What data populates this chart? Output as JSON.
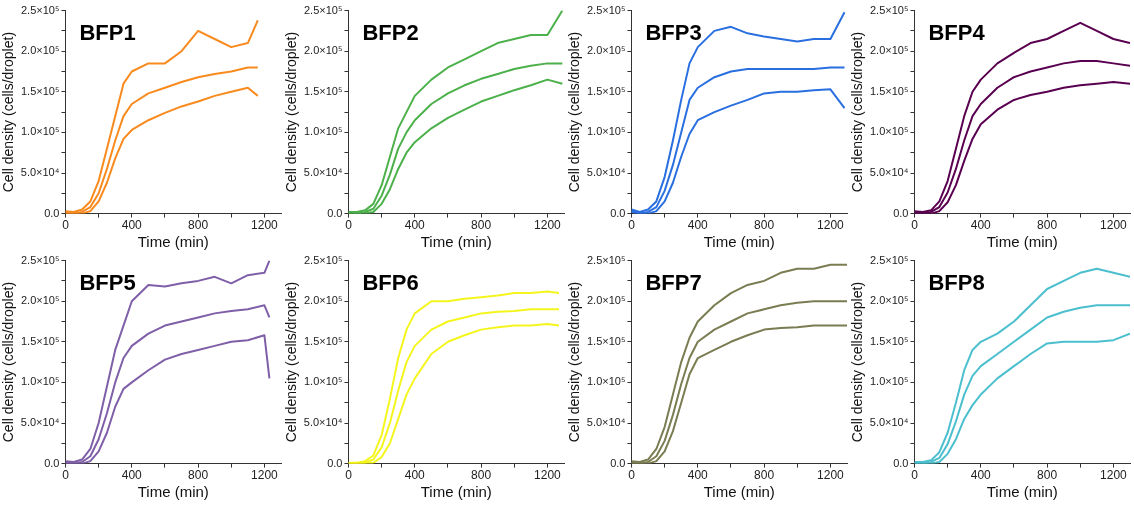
{
  "chart_data": [
    {
      "type": "line",
      "title": "BFP1",
      "xlabel": "Time (min)",
      "ylabel": "Cell density (cells/droplet)",
      "xlim": [
        0,
        1300
      ],
      "ylim": [
        0,
        250000
      ],
      "xticks": [
        0,
        {
          "value": 200,
          "label": null
        },
        400,
        {
          "value": 600,
          "label": null
        },
        800,
        {
          "value": 1000,
          "label": null
        },
        1200
      ],
      "yticks": [
        {
          "value": 0,
          "label": "0.0"
        },
        {
          "value": 25000,
          "label": null
        },
        {
          "value": 50000,
          "label": "5.0×10⁴"
        },
        {
          "value": 75000,
          "label": null
        },
        {
          "value": 100000,
          "label": "1.0×10⁵"
        },
        {
          "value": 125000,
          "label": null
        },
        {
          "value": 150000,
          "label": "1.5×10⁵"
        },
        {
          "value": 175000,
          "label": null
        },
        {
          "value": 200000,
          "label": "2.0×10⁵"
        },
        {
          "value": 225000,
          "label": null
        },
        {
          "value": 250000,
          "label": "2.5×10⁵"
        }
      ],
      "series": [
        {
          "color": "#f98a1e",
          "x": [
            0,
            50,
            100,
            150,
            200,
            250,
            300,
            350,
            400,
            500,
            600,
            700,
            800,
            900,
            1000,
            1100,
            1160
          ],
          "values": [
            0,
            0,
            0,
            3000,
            15000,
            38000,
            68000,
            92000,
            103000,
            115000,
            124000,
            132000,
            138000,
            145000,
            150000,
            155000,
            145000
          ]
        },
        {
          "color": "#f98a1e",
          "x": [
            0,
            50,
            100,
            150,
            200,
            250,
            300,
            350,
            400,
            500,
            600,
            700,
            800,
            900,
            1000,
            1100,
            1160
          ],
          "values": [
            1000,
            0,
            2000,
            8000,
            25000,
            55000,
            90000,
            120000,
            135000,
            148000,
            155000,
            162000,
            168000,
            172000,
            175000,
            180000,
            180000
          ]
        },
        {
          "color": "#f98a1e",
          "x": [
            0,
            50,
            100,
            150,
            200,
            250,
            300,
            350,
            400,
            500,
            600,
            700,
            800,
            900,
            1000,
            1100,
            1160
          ],
          "values": [
            3000,
            2000,
            5000,
            15000,
            40000,
            80000,
            120000,
            160000,
            175000,
            185000,
            185000,
            200000,
            225000,
            215000,
            205000,
            210000,
            238000
          ]
        }
      ]
    },
    {
      "type": "line",
      "title": "BFP2",
      "xlabel": "Time (min)",
      "ylabel": "Cell density (cells/droplet)",
      "xlim": [
        0,
        1300
      ],
      "ylim": [
        0,
        250000
      ],
      "xticks": [
        0,
        {
          "value": 200,
          "label": null
        },
        400,
        {
          "value": 600,
          "label": null
        },
        800,
        {
          "value": 1000,
          "label": null
        },
        1200
      ],
      "yticks": [
        {
          "value": 0,
          "label": "0.0"
        },
        {
          "value": 25000,
          "label": null
        },
        {
          "value": 50000,
          "label": "5.0×10⁴"
        },
        {
          "value": 75000,
          "label": null
        },
        {
          "value": 100000,
          "label": "1.0×10⁵"
        },
        {
          "value": 125000,
          "label": null
        },
        {
          "value": 150000,
          "label": "1.5×10⁵"
        },
        {
          "value": 175000,
          "label": null
        },
        {
          "value": 200000,
          "label": "2.0×10⁵"
        },
        {
          "value": 225000,
          "label": null
        },
        {
          "value": 250000,
          "label": "2.5×10⁵"
        }
      ],
      "series": [
        {
          "color": "#4cb04b",
          "x": [
            0,
            50,
            100,
            150,
            200,
            250,
            300,
            350,
            400,
            500,
            600,
            700,
            800,
            900,
            1000,
            1100,
            1200,
            1290
          ],
          "values": [
            0,
            0,
            0,
            2000,
            12000,
            30000,
            55000,
            75000,
            88000,
            105000,
            118000,
            128000,
            138000,
            145000,
            152000,
            158000,
            165000,
            160000
          ]
        },
        {
          "color": "#4cb04b",
          "x": [
            0,
            50,
            100,
            150,
            200,
            250,
            300,
            350,
            400,
            500,
            600,
            700,
            800,
            900,
            1000,
            1100,
            1200,
            1290
          ],
          "values": [
            1000,
            0,
            2000,
            6000,
            22000,
            48000,
            80000,
            100000,
            115000,
            135000,
            148000,
            158000,
            166000,
            172000,
            178000,
            182000,
            185000,
            185000
          ]
        },
        {
          "color": "#4cb04b",
          "x": [
            0,
            50,
            100,
            150,
            200,
            250,
            300,
            350,
            400,
            500,
            600,
            700,
            800,
            900,
            1000,
            1100,
            1200,
            1290
          ],
          "values": [
            2000,
            2000,
            4000,
            12000,
            35000,
            70000,
            105000,
            125000,
            145000,
            165000,
            180000,
            190000,
            200000,
            210000,
            215000,
            220000,
            220000,
            250000
          ]
        }
      ]
    },
    {
      "type": "line",
      "title": "BFP3",
      "xlabel": "Time (min)",
      "ylabel": "Cell density (cells/droplet)",
      "xlim": [
        0,
        1300
      ],
      "ylim": [
        0,
        250000
      ],
      "xticks": [
        0,
        {
          "value": 200,
          "label": null
        },
        400,
        {
          "value": 600,
          "label": null
        },
        800,
        {
          "value": 1000,
          "label": null
        },
        1200
      ],
      "yticks": [
        {
          "value": 0,
          "label": "0.0"
        },
        {
          "value": 25000,
          "label": null
        },
        {
          "value": 50000,
          "label": "5.0×10⁴"
        },
        {
          "value": 75000,
          "label": null
        },
        {
          "value": 100000,
          "label": "1.0×10⁵"
        },
        {
          "value": 125000,
          "label": null
        },
        {
          "value": 150000,
          "label": "1.5×10⁵"
        },
        {
          "value": 175000,
          "label": null
        },
        {
          "value": 200000,
          "label": "2.0×10⁵"
        },
        {
          "value": 225000,
          "label": null
        },
        {
          "value": 250000,
          "label": "2.5×10⁵"
        }
      ],
      "series": [
        {
          "color": "#2a6fe0",
          "x": [
            0,
            50,
            100,
            150,
            200,
            250,
            300,
            350,
            400,
            500,
            600,
            700,
            800,
            900,
            1000,
            1100,
            1200,
            1285
          ],
          "values": [
            3000,
            0,
            0,
            3000,
            15000,
            38000,
            70000,
            98000,
            115000,
            125000,
            133000,
            140000,
            148000,
            150000,
            150000,
            152000,
            153000,
            130000
          ]
        },
        {
          "color": "#2a6fe0",
          "x": [
            0,
            50,
            100,
            150,
            200,
            250,
            300,
            350,
            400,
            500,
            600,
            700,
            800,
            900,
            1000,
            1100,
            1200,
            1285
          ],
          "values": [
            2000,
            0,
            2000,
            8000,
            28000,
            60000,
            100000,
            140000,
            155000,
            168000,
            175000,
            178000,
            178000,
            178000,
            178000,
            178000,
            180000,
            180000
          ]
        },
        {
          "color": "#2a6fe0",
          "x": [
            0,
            50,
            100,
            150,
            200,
            250,
            300,
            350,
            400,
            500,
            600,
            700,
            800,
            900,
            1000,
            1100,
            1200,
            1285
          ],
          "values": [
            5000,
            2000,
            5000,
            15000,
            45000,
            90000,
            140000,
            185000,
            205000,
            225000,
            230000,
            222000,
            218000,
            215000,
            212000,
            215000,
            215000,
            248000
          ]
        }
      ]
    },
    {
      "type": "line",
      "title": "BFP4",
      "xlabel": "Time (min)",
      "ylabel": "Cell density (cells/droplet)",
      "xlim": [
        0,
        1300
      ],
      "ylim": [
        0,
        250000
      ],
      "xticks": [
        0,
        {
          "value": 200,
          "label": null
        },
        400,
        {
          "value": 600,
          "label": null
        },
        800,
        {
          "value": 1000,
          "label": null
        },
        1200
      ],
      "yticks": [
        {
          "value": 0,
          "label": "0.0"
        },
        {
          "value": 25000,
          "label": null
        },
        {
          "value": 50000,
          "label": "5.0×10⁴"
        },
        {
          "value": 75000,
          "label": null
        },
        {
          "value": 100000,
          "label": "1.0×10⁵"
        },
        {
          "value": 125000,
          "label": null
        },
        {
          "value": 150000,
          "label": "1.5×10⁵"
        },
        {
          "value": 175000,
          "label": null
        },
        {
          "value": 200000,
          "label": "2.0×10⁵"
        },
        {
          "value": 225000,
          "label": null
        },
        {
          "value": 250000,
          "label": "2.5×10⁵"
        }
      ],
      "series": [
        {
          "color": "#5a0050",
          "x": [
            0,
            50,
            100,
            150,
            200,
            250,
            300,
            350,
            400,
            500,
            600,
            700,
            800,
            900,
            1000,
            1100,
            1200,
            1300
          ],
          "values": [
            0,
            0,
            0,
            3000,
            14000,
            35000,
            65000,
            92000,
            110000,
            128000,
            140000,
            146000,
            150000,
            155000,
            158000,
            160000,
            162000,
            160000
          ]
        },
        {
          "color": "#5a0050",
          "x": [
            0,
            50,
            100,
            150,
            200,
            250,
            300,
            350,
            400,
            500,
            600,
            700,
            800,
            900,
            1000,
            1100,
            1200,
            1300
          ],
          "values": [
            1000,
            0,
            2000,
            8000,
            26000,
            55000,
            90000,
            120000,
            135000,
            155000,
            168000,
            175000,
            180000,
            185000,
            188000,
            188000,
            185000,
            182000
          ]
        },
        {
          "color": "#5a0050",
          "x": [
            0,
            50,
            100,
            150,
            200,
            250,
            300,
            350,
            400,
            500,
            600,
            700,
            800,
            900,
            1000,
            1100,
            1200,
            1300
          ],
          "values": [
            3000,
            2000,
            4000,
            15000,
            40000,
            80000,
            120000,
            150000,
            165000,
            185000,
            198000,
            210000,
            215000,
            225000,
            235000,
            225000,
            215000,
            210000
          ]
        }
      ]
    },
    {
      "type": "line",
      "title": "BFP5",
      "xlabel": "Time (min)",
      "ylabel": "Cell density (cells/droplet)",
      "xlim": [
        0,
        1300
      ],
      "ylim": [
        0,
        250000
      ],
      "xticks": [
        0,
        {
          "value": 200,
          "label": null
        },
        400,
        {
          "value": 600,
          "label": null
        },
        800,
        {
          "value": 1000,
          "label": null
        },
        1200
      ],
      "yticks": [
        {
          "value": 0,
          "label": "0.0"
        },
        {
          "value": 25000,
          "label": null
        },
        {
          "value": 50000,
          "label": "5.0×10⁴"
        },
        {
          "value": 75000,
          "label": null
        },
        {
          "value": 100000,
          "label": "1.0×10⁵"
        },
        {
          "value": 125000,
          "label": null
        },
        {
          "value": 150000,
          "label": "1.5×10⁵"
        },
        {
          "value": 175000,
          "label": null
        },
        {
          "value": 200000,
          "label": "2.0×10⁵"
        },
        {
          "value": 225000,
          "label": null
        },
        {
          "value": 250000,
          "label": "2.5×10⁵"
        }
      ],
      "series": [
        {
          "color": "#7f5fa8",
          "x": [
            0,
            50,
            100,
            150,
            200,
            250,
            300,
            350,
            400,
            500,
            600,
            700,
            800,
            900,
            1000,
            1100,
            1200,
            1230
          ],
          "values": [
            0,
            0,
            0,
            3000,
            15000,
            38000,
            70000,
            92000,
            100000,
            115000,
            128000,
            135000,
            140000,
            145000,
            150000,
            152000,
            158000,
            105000
          ]
        },
        {
          "color": "#7f5fa8",
          "x": [
            0,
            50,
            100,
            150,
            200,
            250,
            300,
            350,
            400,
            500,
            600,
            700,
            800,
            900,
            1000,
            1100,
            1200,
            1230
          ],
          "values": [
            1000,
            0,
            2000,
            9000,
            30000,
            62000,
            100000,
            130000,
            145000,
            160000,
            170000,
            175000,
            180000,
            185000,
            188000,
            190000,
            195000,
            180000
          ]
        },
        {
          "color": "#7f5fa8",
          "x": [
            0,
            50,
            100,
            150,
            200,
            250,
            300,
            350,
            400,
            500,
            600,
            700,
            800,
            900,
            1000,
            1100,
            1200,
            1230
          ],
          "values": [
            3000,
            2000,
            5000,
            18000,
            50000,
            95000,
            140000,
            170000,
            200000,
            220000,
            218000,
            222000,
            225000,
            230000,
            222000,
            232000,
            235000,
            250000
          ]
        }
      ]
    },
    {
      "type": "line",
      "title": "BFP6",
      "xlabel": "Time (min)",
      "ylabel": "Cell density (cells/droplet)",
      "xlim": [
        0,
        1300
      ],
      "ylim": [
        0,
        250000
      ],
      "xticks": [
        0,
        {
          "value": 200,
          "label": null
        },
        400,
        {
          "value": 600,
          "label": null
        },
        800,
        {
          "value": 1000,
          "label": null
        },
        1200
      ],
      "yticks": [
        {
          "value": 0,
          "label": "0.0"
        },
        {
          "value": 25000,
          "label": null
        },
        {
          "value": 50000,
          "label": "5.0×10⁴"
        },
        {
          "value": 75000,
          "label": null
        },
        {
          "value": 100000,
          "label": "1.0×10⁵"
        },
        {
          "value": 125000,
          "label": null
        },
        {
          "value": 150000,
          "label": "1.5×10⁵"
        },
        {
          "value": 175000,
          "label": null
        },
        {
          "value": 200000,
          "label": "2.0×10⁵"
        },
        {
          "value": 225000,
          "label": null
        },
        {
          "value": 250000,
          "label": "2.5×10⁵"
        }
      ],
      "series": [
        {
          "color": "#f5f51e",
          "x": [
            0,
            50,
            100,
            150,
            200,
            250,
            300,
            350,
            400,
            500,
            600,
            700,
            800,
            900,
            1000,
            1100,
            1200,
            1270
          ],
          "values": [
            0,
            0,
            0,
            1000,
            8000,
            25000,
            55000,
            85000,
            105000,
            135000,
            150000,
            158000,
            165000,
            168000,
            170000,
            170000,
            172000,
            170000
          ]
        },
        {
          "color": "#f5f51e",
          "x": [
            0,
            50,
            100,
            150,
            200,
            250,
            300,
            350,
            400,
            500,
            600,
            700,
            800,
            900,
            1000,
            1100,
            1200,
            1270
          ],
          "values": [
            0,
            0,
            1000,
            5000,
            20000,
            50000,
            90000,
            125000,
            145000,
            165000,
            175000,
            180000,
            185000,
            187000,
            188000,
            190000,
            190000,
            190000
          ]
        },
        {
          "color": "#f5f51e",
          "x": [
            0,
            50,
            100,
            150,
            200,
            250,
            300,
            350,
            400,
            500,
            600,
            700,
            800,
            900,
            1000,
            1100,
            1200,
            1270
          ],
          "values": [
            1000,
            1000,
            3000,
            10000,
            35000,
            80000,
            130000,
            165000,
            185000,
            200000,
            200000,
            203000,
            205000,
            207000,
            210000,
            210000,
            212000,
            210000
          ]
        }
      ]
    },
    {
      "type": "line",
      "title": "BFP7",
      "xlabel": "Time (min)",
      "ylabel": "Cell density (cells/droplet)",
      "xlim": [
        0,
        1300
      ],
      "ylim": [
        0,
        250000
      ],
      "xticks": [
        0,
        {
          "value": 200,
          "label": null
        },
        400,
        {
          "value": 600,
          "label": null
        },
        800,
        {
          "value": 1000,
          "label": null
        },
        1200
      ],
      "yticks": [
        {
          "value": 0,
          "label": "0.0"
        },
        {
          "value": 25000,
          "label": null
        },
        {
          "value": 50000,
          "label": "5.0×10⁴"
        },
        {
          "value": 75000,
          "label": null
        },
        {
          "value": 100000,
          "label": "1.0×10⁵"
        },
        {
          "value": 125000,
          "label": null
        },
        {
          "value": 150000,
          "label": "1.5×10⁵"
        },
        {
          "value": 175000,
          "label": null
        },
        {
          "value": 200000,
          "label": "2.0×10⁵"
        },
        {
          "value": 225000,
          "label": null
        },
        {
          "value": 250000,
          "label": "2.5×10⁵"
        }
      ],
      "series": [
        {
          "color": "#7a7c52",
          "x": [
            0,
            50,
            100,
            150,
            200,
            250,
            300,
            350,
            400,
            500,
            600,
            700,
            800,
            900,
            1000,
            1100,
            1200,
            1300
          ],
          "values": [
            0,
            0,
            0,
            3000,
            15000,
            40000,
            75000,
            110000,
            130000,
            140000,
            150000,
            158000,
            165000,
            167000,
            168000,
            170000,
            170000,
            170000
          ]
        },
        {
          "color": "#7a7c52",
          "x": [
            0,
            50,
            100,
            150,
            200,
            250,
            300,
            350,
            400,
            500,
            600,
            700,
            800,
            900,
            1000,
            1100,
            1200,
            1300
          ],
          "values": [
            1000,
            0,
            2000,
            9000,
            28000,
            60000,
            98000,
            130000,
            150000,
            165000,
            175000,
            185000,
            190000,
            195000,
            198000,
            200000,
            200000,
            200000
          ]
        },
        {
          "color": "#7a7c52",
          "x": [
            0,
            50,
            100,
            150,
            200,
            250,
            300,
            350,
            400,
            500,
            600,
            700,
            800,
            900,
            1000,
            1100,
            1200,
            1300
          ],
          "values": [
            3000,
            2000,
            5000,
            18000,
            45000,
            85000,
            125000,
            155000,
            175000,
            195000,
            210000,
            220000,
            225000,
            235000,
            240000,
            240000,
            245000,
            245000
          ]
        }
      ]
    },
    {
      "type": "line",
      "title": "BFP8",
      "xlabel": "Time (min)",
      "ylabel": "Cell density (cells/droplet)",
      "xlim": [
        0,
        1300
      ],
      "ylim": [
        0,
        250000
      ],
      "xticks": [
        0,
        {
          "value": 200,
          "label": null
        },
        400,
        {
          "value": 600,
          "label": null
        },
        800,
        {
          "value": 1000,
          "label": null
        },
        1200
      ],
      "yticks": [
        {
          "value": 0,
          "label": "0.0"
        },
        {
          "value": 25000,
          "label": null
        },
        {
          "value": 50000,
          "label": "5.0×10⁴"
        },
        {
          "value": 75000,
          "label": null
        },
        {
          "value": 100000,
          "label": "1.0×10⁵"
        },
        {
          "value": 125000,
          "label": null
        },
        {
          "value": 150000,
          "label": "1.5×10⁵"
        },
        {
          "value": 175000,
          "label": null
        },
        {
          "value": 200000,
          "label": "2.0×10⁵"
        },
        {
          "value": 225000,
          "label": null
        },
        {
          "value": 250000,
          "label": "2.5×10⁵"
        }
      ],
      "series": [
        {
          "color": "#4bbfce",
          "x": [
            0,
            50,
            100,
            150,
            200,
            250,
            300,
            350,
            400,
            500,
            600,
            700,
            800,
            900,
            1000,
            1100,
            1200,
            1300
          ],
          "values": [
            0,
            0,
            0,
            2000,
            12000,
            30000,
            55000,
            72000,
            85000,
            105000,
            120000,
            135000,
            148000,
            150000,
            150000,
            150000,
            152000,
            160000
          ]
        },
        {
          "color": "#4bbfce",
          "x": [
            0,
            50,
            100,
            150,
            200,
            250,
            300,
            350,
            400,
            500,
            600,
            700,
            800,
            900,
            1000,
            1100,
            1200,
            1300
          ],
          "values": [
            1000,
            0,
            2000,
            7000,
            24000,
            52000,
            85000,
            108000,
            120000,
            135000,
            150000,
            165000,
            180000,
            187000,
            192000,
            195000,
            195000,
            195000
          ]
        },
        {
          "color": "#4bbfce",
          "x": [
            0,
            50,
            100,
            150,
            200,
            250,
            300,
            350,
            400,
            500,
            600,
            700,
            800,
            900,
            1000,
            1100,
            1200,
            1300
          ],
          "values": [
            2000,
            2000,
            4000,
            14000,
            38000,
            75000,
            115000,
            140000,
            150000,
            160000,
            175000,
            195000,
            215000,
            225000,
            235000,
            240000,
            235000,
            230000
          ]
        }
      ]
    }
  ]
}
